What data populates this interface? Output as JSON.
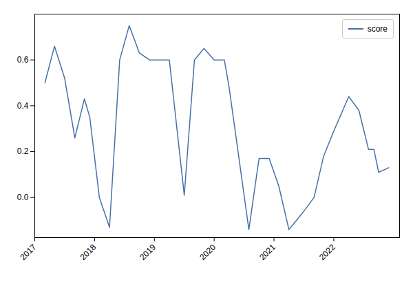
{
  "chart_data": {
    "type": "line",
    "x": [
      2017.17,
      2017.33,
      2017.5,
      2017.67,
      2017.83,
      2017.92,
      2018.08,
      2018.25,
      2018.42,
      2018.58,
      2018.75,
      2018.92,
      2019.08,
      2019.25,
      2019.5,
      2019.67,
      2019.83,
      2020.0,
      2020.17,
      2020.25,
      2020.58,
      2020.75,
      2020.92,
      2021.08,
      2021.25,
      2021.5,
      2021.67,
      2021.83,
      2022.0,
      2022.25,
      2022.42,
      2022.58,
      2022.67,
      2022.75,
      2022.92
    ],
    "series": [
      {
        "name": "score",
        "color": "#4472a8",
        "values": [
          0.5,
          0.66,
          0.52,
          0.26,
          0.43,
          0.35,
          0.0,
          -0.13,
          0.6,
          0.75,
          0.63,
          0.6,
          0.6,
          0.6,
          0.01,
          0.6,
          0.65,
          0.6,
          0.6,
          0.48,
          -0.14,
          0.17,
          0.17,
          0.05,
          -0.14,
          -0.06,
          0.0,
          0.18,
          0.29,
          0.44,
          0.38,
          0.21,
          0.21,
          0.11,
          0.13
        ]
      }
    ],
    "xlim": [
      2017.0,
      2023.1
    ],
    "ylim": [
      -0.175,
      0.8
    ],
    "xticks": [
      2017,
      2018,
      2019,
      2020,
      2021,
      2022
    ],
    "yticks": [
      {
        "value": 0.0,
        "label": "0.0"
      },
      0.2,
      0.4,
      0.6
    ],
    "legend": "upper right",
    "grid": false
  }
}
